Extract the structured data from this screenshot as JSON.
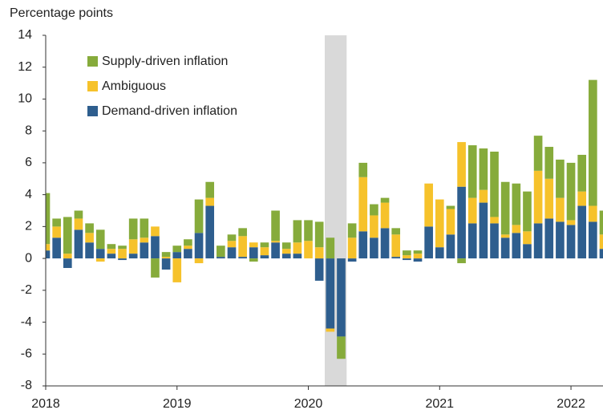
{
  "chart_data": {
    "type": "stacked_bar",
    "y_axis_label": "Percentage points",
    "categories": [
      "2018",
      null,
      null,
      null,
      null,
      null,
      null,
      null,
      null,
      null,
      null,
      null,
      "2019",
      null,
      null,
      null,
      null,
      null,
      null,
      null,
      null,
      null,
      null,
      null,
      "2020",
      null,
      null,
      null,
      null,
      null,
      null,
      null,
      null,
      null,
      null,
      null,
      "2021",
      null,
      null,
      null,
      null,
      null,
      null,
      null,
      null,
      null,
      null,
      null,
      "2022",
      null,
      null,
      null
    ],
    "series": [
      {
        "name": "Demand-driven inflation",
        "color": "#2e5e8e",
        "values": [
          0.5,
          1.3,
          -0.6,
          1.8,
          1.0,
          0.6,
          0.3,
          -0.1,
          0.3,
          1.0,
          1.4,
          -0.7,
          0.4,
          0.6,
          1.6,
          3.3,
          0.1,
          0.7,
          0.1,
          0.7,
          0.2,
          1.0,
          0.3,
          0.3,
          0.0,
          -1.4,
          -4.4,
          -4.9,
          -0.2,
          1.7,
          1.3,
          1.9,
          0.1,
          -0.1,
          -0.2,
          2.0,
          0.7,
          1.5,
          4.5,
          2.2,
          3.5,
          2.2,
          1.3,
          1.6,
          0.9,
          2.2,
          2.5,
          2.3,
          2.1,
          3.3,
          2.3,
          0.6
        ]
      },
      {
        "name": "Ambiguous",
        "color": "#f6c22b",
        "values": [
          0.4,
          0.7,
          0.3,
          0.7,
          0.6,
          -0.2,
          0.3,
          0.6,
          0.9,
          0.3,
          0.6,
          0.1,
          -1.5,
          0.2,
          -0.3,
          0.5,
          0.0,
          0.4,
          1.3,
          0.3,
          0.5,
          0.1,
          0.3,
          0.7,
          1.1,
          0.7,
          -0.2,
          0.0,
          1.3,
          3.4,
          1.4,
          1.6,
          1.4,
          0.2,
          0.3,
          2.7,
          3.0,
          1.6,
          2.8,
          1.6,
          0.8,
          0.4,
          0.2,
          0.5,
          0.8,
          3.3,
          2.5,
          1.5,
          0.3,
          0.9,
          1.0,
          0.9
        ]
      },
      {
        "name": "Supply-driven inflation",
        "color": "#86ab3b",
        "values": [
          3.2,
          0.5,
          2.3,
          0.5,
          0.6,
          1.2,
          0.3,
          0.2,
          1.3,
          1.2,
          -1.2,
          0.3,
          0.4,
          0.4,
          2.1,
          1.0,
          0.7,
          0.4,
          0.5,
          -0.2,
          0.3,
          1.9,
          0.4,
          1.4,
          1.3,
          1.6,
          1.3,
          -1.4,
          0.9,
          0.9,
          0.7,
          0.3,
          0.4,
          0.3,
          0.2,
          0.0,
          0.0,
          0.2,
          -0.3,
          3.3,
          2.6,
          4.1,
          3.3,
          2.6,
          2.5,
          2.2,
          2.0,
          2.4,
          3.6,
          2.3,
          7.9,
          1.5
        ]
      }
    ],
    "ylim": [
      -8,
      14
    ],
    "yticks": [
      -8,
      -6,
      -4,
      -2,
      0,
      2,
      4,
      6,
      8,
      10,
      12,
      14
    ],
    "shaded_range": [
      26,
      27
    ],
    "shade_color": "#d9d9d9",
    "grid": false,
    "legend": "upper left"
  }
}
